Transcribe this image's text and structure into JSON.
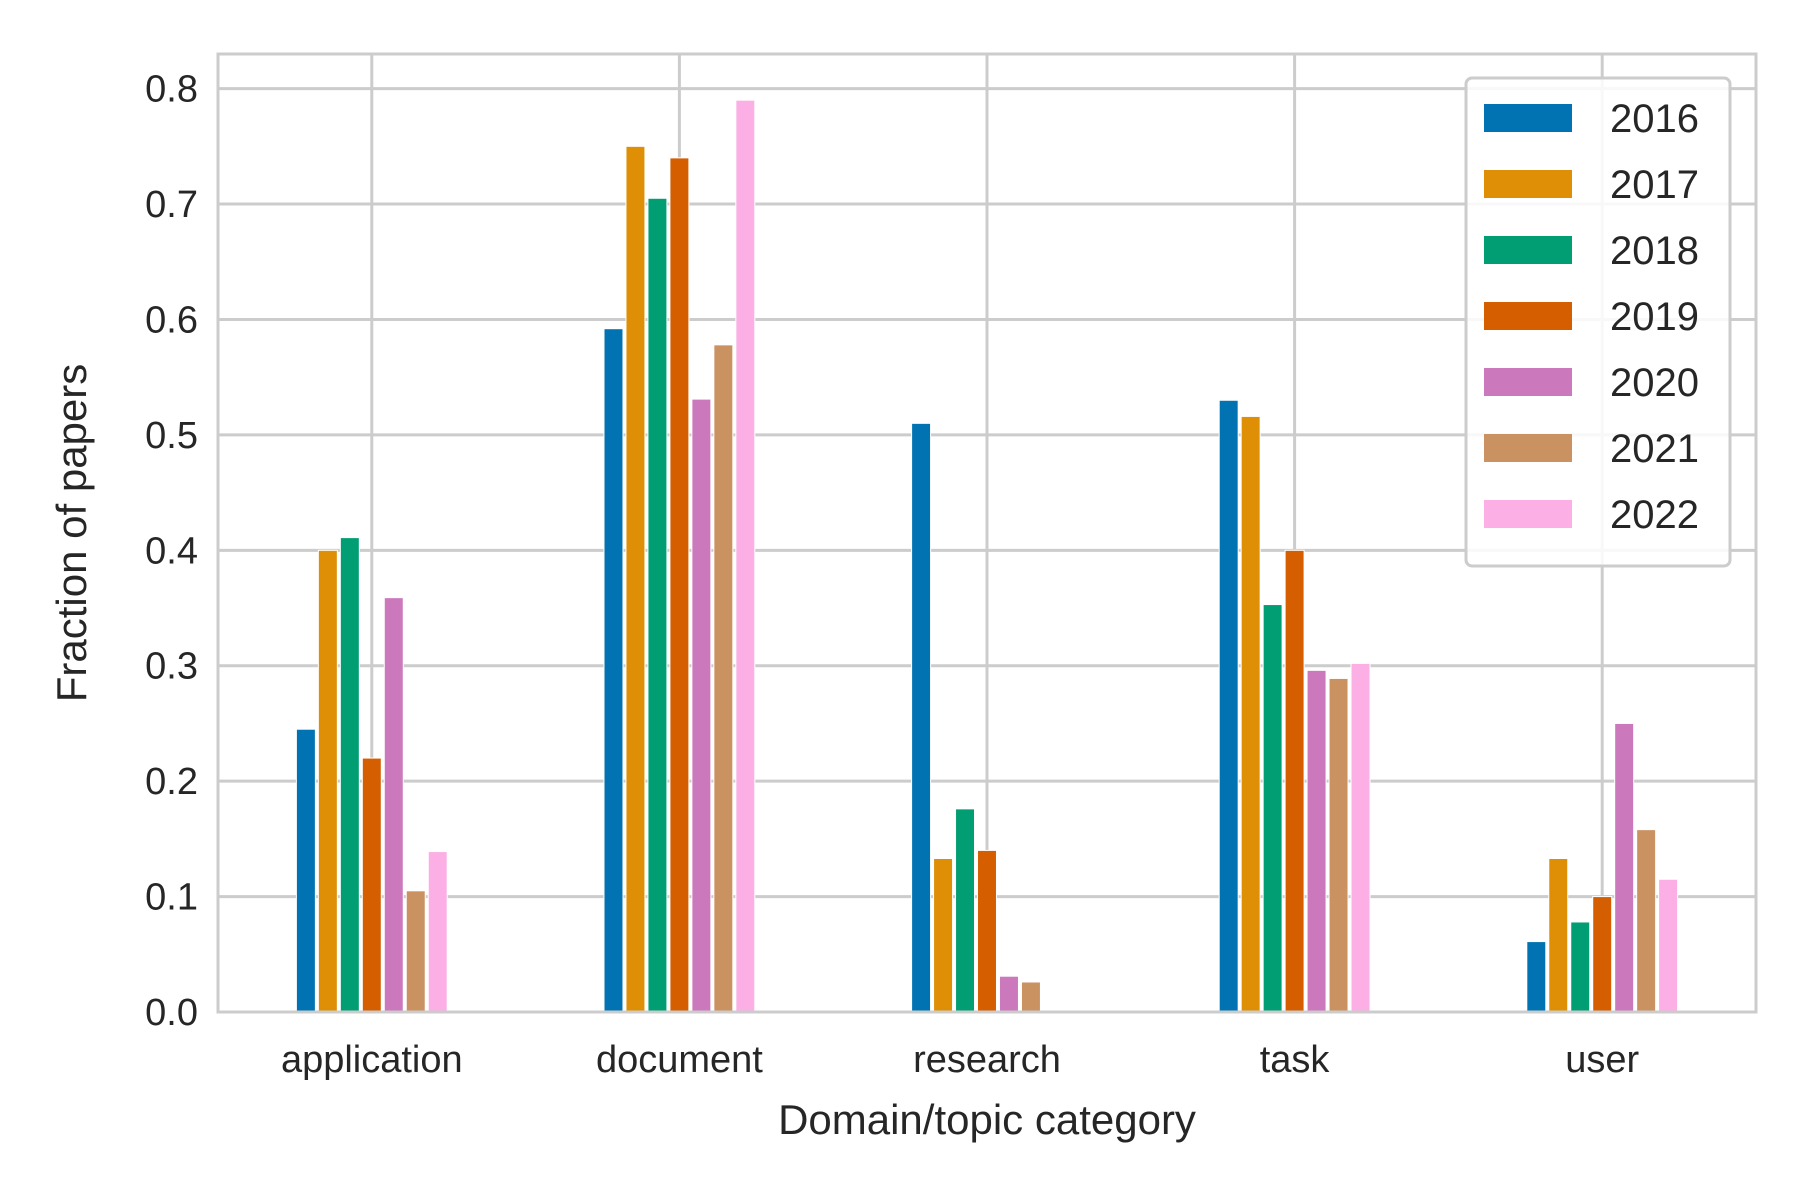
{
  "chart_data": {
    "type": "bar",
    "title": "",
    "xlabel": "Domain/topic category",
    "ylabel": "Fraction of papers",
    "ylim": [
      0,
      0.83
    ],
    "yticks": [
      "0.0",
      "0.1",
      "0.2",
      "0.3",
      "0.4",
      "0.5",
      "0.6",
      "0.7",
      "0.8"
    ],
    "grid": true,
    "legend_position": "top-right",
    "categories": [
      "application",
      "document",
      "research",
      "task",
      "user"
    ],
    "series": [
      {
        "name": "2016",
        "color": "#0173b2",
        "values": [
          0.245,
          0.592,
          0.51,
          0.53,
          0.061
        ]
      },
      {
        "name": "2017",
        "color": "#de8f05",
        "values": [
          0.4,
          0.75,
          0.133,
          0.516,
          0.133
        ]
      },
      {
        "name": "2018",
        "color": "#029e73",
        "values": [
          0.411,
          0.705,
          0.176,
          0.353,
          0.078
        ]
      },
      {
        "name": "2019",
        "color": "#d55e00",
        "values": [
          0.22,
          0.74,
          0.14,
          0.4,
          0.1
        ]
      },
      {
        "name": "2020",
        "color": "#cc78bc",
        "values": [
          0.359,
          0.531,
          0.031,
          0.296,
          0.25
        ]
      },
      {
        "name": "2021",
        "color": "#ca9161",
        "values": [
          0.105,
          0.578,
          0.026,
          0.289,
          0.158
        ]
      },
      {
        "name": "2022",
        "color": "#fbafe4",
        "values": [
          0.139,
          0.79,
          0.0,
          0.302,
          0.115
        ]
      }
    ]
  }
}
